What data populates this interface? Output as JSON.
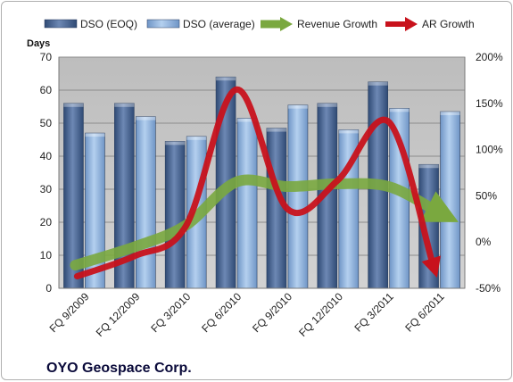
{
  "chart_data": {
    "type": "bar",
    "title": "OYO Geospace Corp.",
    "ylabel": "Days",
    "ylim": [
      0,
      70
    ],
    "y_ticks": [
      "0",
      "10",
      "20",
      "30",
      "40",
      "50",
      "60",
      "70"
    ],
    "y2lim": [
      -50,
      200
    ],
    "y2_ticks": [
      "-50%",
      "0%",
      "50%",
      "100%",
      "150%",
      "200%"
    ],
    "categories": [
      "FQ 9/2009",
      "FQ 12/2009",
      "FQ 3/2010",
      "FQ 6/2010",
      "FQ 9/2010",
      "FQ 12/2010",
      "FQ 3/2011",
      "FQ 6/2011"
    ],
    "series": [
      {
        "name": "DSO (EOQ)",
        "type": "bar",
        "axis": "left",
        "values": [
          56,
          56,
          44.5,
          64,
          48.5,
          56,
          62.5,
          37.5
        ]
      },
      {
        "name": "DSO (average)",
        "type": "bar",
        "axis": "left",
        "values": [
          47,
          52,
          46,
          51.5,
          55.5,
          48,
          54.5,
          53.5
        ]
      },
      {
        "name": "Revenue Growth",
        "type": "line",
        "axis": "right",
        "values": [
          -25,
          -5,
          18,
          65,
          60,
          63,
          60,
          35
        ]
      },
      {
        "name": "AR Growth",
        "type": "line",
        "axis": "right",
        "values": [
          -37,
          -15,
          17,
          165,
          36,
          67,
          130,
          -22
        ]
      }
    ],
    "colors": {
      "eoq_bar": "#4f6a96",
      "avg_bar": "#8fb3dd",
      "revenue_line": "#7aa83f",
      "ar_line": "#c8121c",
      "plot_bg": "#c6c6c6"
    },
    "grid": true,
    "legend_position": "top"
  }
}
